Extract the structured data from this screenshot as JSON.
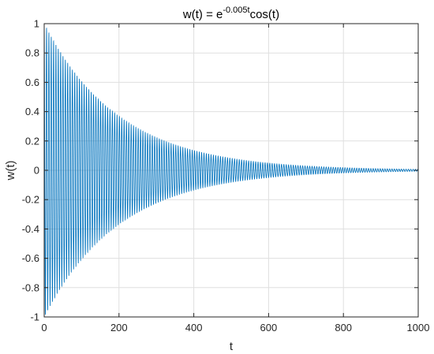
{
  "chart_data": {
    "type": "line",
    "title_parts": {
      "base": "w(t) = e",
      "exponent": "-0.005t",
      "tail": "cos(t)"
    },
    "xlabel": "t",
    "ylabel": "w(t)",
    "xlim": [
      0,
      1000
    ],
    "ylim": [
      -1,
      1
    ],
    "xticks": [
      0,
      200,
      400,
      600,
      800,
      1000
    ],
    "xtick_labels": [
      "0",
      "200",
      "400",
      "600",
      "800",
      "1000"
    ],
    "yticks": [
      -1,
      -0.8,
      -0.6,
      -0.4,
      -0.2,
      0,
      0.2,
      0.4,
      0.6,
      0.8,
      1
    ],
    "ytick_labels": [
      "-1",
      "-0.8",
      "-0.6",
      "-0.4",
      "-0.2",
      "0",
      "0.2",
      "0.4",
      "0.6",
      "0.8",
      "1"
    ],
    "grid": true,
    "series": [
      {
        "function": "exp(-0.005*t)*cos(t)",
        "t_start": 0,
        "t_end": 1000,
        "color": "#0072BD"
      }
    ]
  }
}
